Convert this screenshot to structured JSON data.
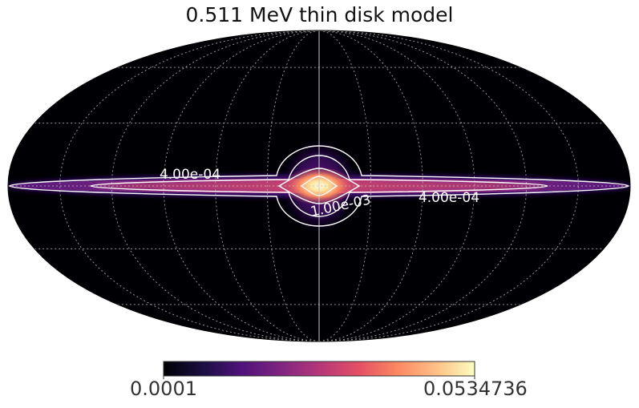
{
  "chart_data": {
    "type": "heatmap",
    "projection": "mollweide",
    "title": "0.511 MeV thin disk model",
    "colormap": "magma",
    "colorbar": {
      "min_label": "0.0001",
      "max_label": "0.0534736",
      "min": 0.0001,
      "max": 0.0534736
    },
    "graticule": true,
    "contour_labels": [
      "4.00e-04",
      "1.00e-03",
      "4.00e-04"
    ],
    "colors": {
      "background": "#000004",
      "graticule": "#bbbbbb",
      "contour": "#ffffff"
    }
  }
}
